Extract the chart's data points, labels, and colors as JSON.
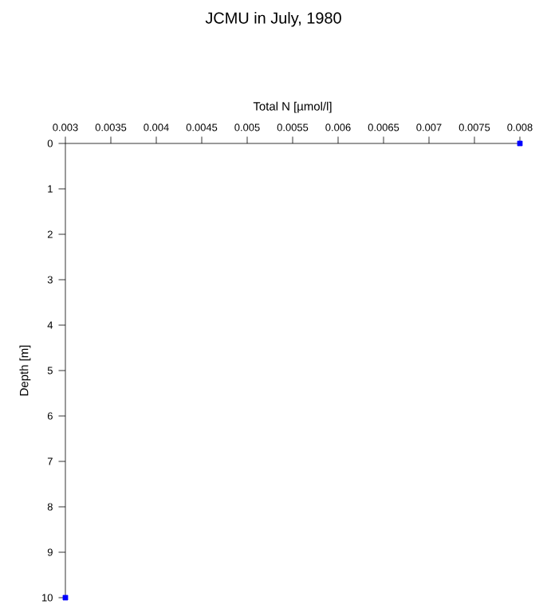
{
  "chart_data": {
    "type": "scatter",
    "title": "JCMU in July, 1980",
    "xlabel": "Total N [µmol/l]",
    "ylabel": "Depth [m]",
    "x": [
      0.008,
      0.003
    ],
    "series": [
      {
        "color": "#0000ff",
        "values": [
          0,
          10
        ]
      }
    ],
    "marker": "square",
    "xlim": [
      0.003,
      0.008
    ],
    "xticks": [
      0.003,
      0.0035,
      0.004,
      0.0045,
      0.005,
      0.0055,
      0.006,
      0.0065,
      0.007,
      0.0075,
      0.008
    ],
    "ylim": [
      10,
      0
    ],
    "yticks": [
      0,
      1,
      2,
      3,
      4,
      5,
      6,
      7,
      8,
      9,
      10
    ]
  }
}
